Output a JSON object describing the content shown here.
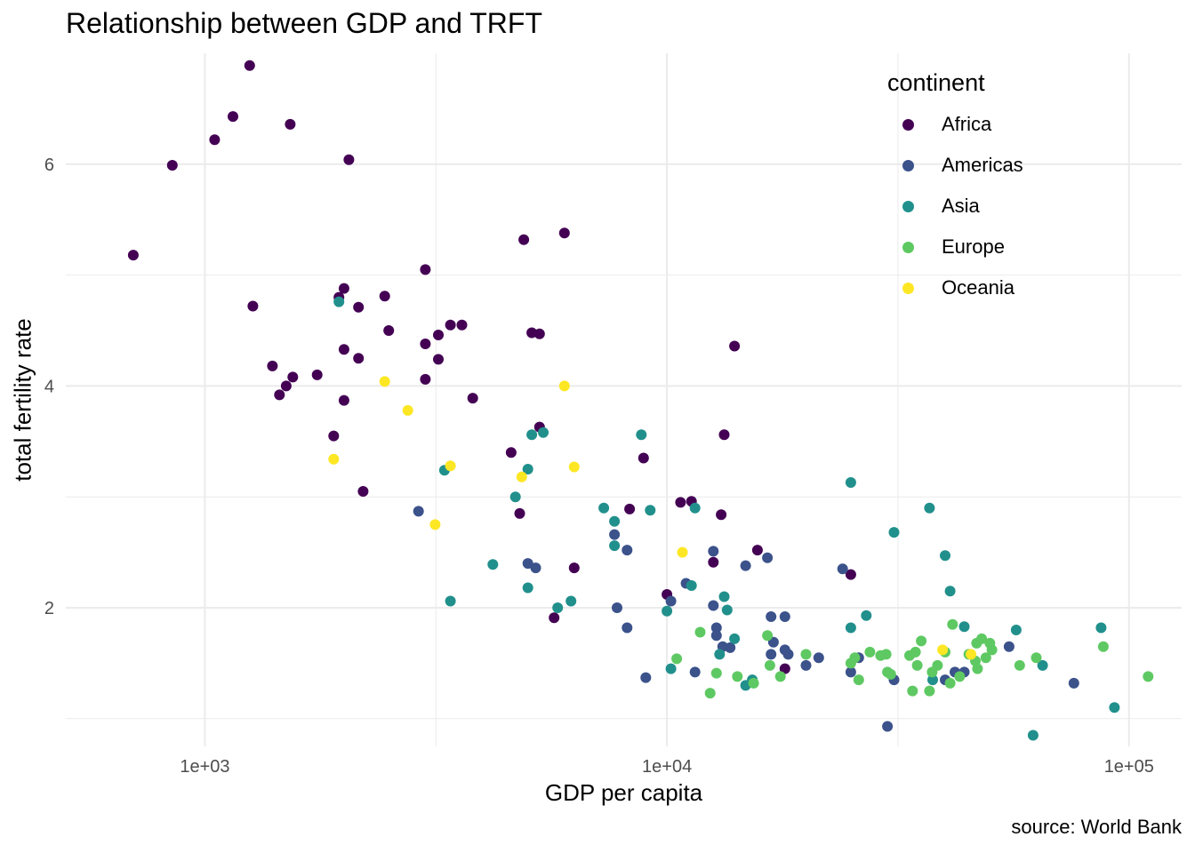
{
  "chart_data": {
    "type": "scatter",
    "title": "Relationship between GDP and TRFT",
    "caption": "source: World Bank",
    "xlabel": "GDP per capita",
    "ylabel": "total fertility rate",
    "x_scale": "log10",
    "xlim": [
      500,
      130000
    ],
    "ylim": [
      0.75,
      7.0
    ],
    "x_ticks": [
      {
        "value": 1000,
        "label": "1e+03"
      },
      {
        "value": 10000,
        "label": "1e+04"
      },
      {
        "value": 100000,
        "label": "1e+05"
      }
    ],
    "y_ticks": [
      {
        "value": 2,
        "label": "2"
      },
      {
        "value": 4,
        "label": "4"
      },
      {
        "value": 6,
        "label": "6"
      }
    ],
    "grid": true,
    "legend_title": "continent",
    "legend_position": "top-right",
    "series": [
      {
        "name": "Africa",
        "color": "#440154",
        "points": [
          [
            700,
            5.18
          ],
          [
            850,
            5.99
          ],
          [
            1050,
            6.22
          ],
          [
            1150,
            6.43
          ],
          [
            1250,
            6.89
          ],
          [
            1270,
            4.72
          ],
          [
            1400,
            4.18
          ],
          [
            1450,
            3.92
          ],
          [
            1500,
            4.0
          ],
          [
            1550,
            4.08
          ],
          [
            1530,
            6.36
          ],
          [
            1750,
            4.1
          ],
          [
            1900,
            3.55
          ],
          [
            1950,
            4.8
          ],
          [
            2000,
            4.88
          ],
          [
            2000,
            4.33
          ],
          [
            2000,
            3.87
          ],
          [
            2050,
            6.04
          ],
          [
            2150,
            4.71
          ],
          [
            2150,
            4.25
          ],
          [
            2200,
            3.05
          ],
          [
            2450,
            4.81
          ],
          [
            2500,
            4.5
          ],
          [
            3000,
            5.05
          ],
          [
            3000,
            4.38
          ],
          [
            3000,
            4.06
          ],
          [
            3200,
            4.46
          ],
          [
            3200,
            4.24
          ],
          [
            3400,
            4.55
          ],
          [
            3600,
            4.55
          ],
          [
            3800,
            3.89
          ],
          [
            4600,
            3.4
          ],
          [
            4800,
            2.85
          ],
          [
            4900,
            5.32
          ],
          [
            5100,
            4.48
          ],
          [
            5300,
            4.47
          ],
          [
            5300,
            3.63
          ],
          [
            5700,
            1.91
          ],
          [
            6000,
            5.38
          ],
          [
            6300,
            2.36
          ],
          [
            8300,
            2.89
          ],
          [
            8900,
            3.35
          ],
          [
            10000,
            2.12
          ],
          [
            10700,
            2.95
          ],
          [
            11300,
            2.96
          ],
          [
            12600,
            2.41
          ],
          [
            13100,
            2.84
          ],
          [
            13300,
            3.56
          ],
          [
            14000,
            4.36
          ],
          [
            15700,
            2.52
          ],
          [
            18000,
            1.45
          ],
          [
            25000,
            2.3
          ]
        ]
      },
      {
        "name": "Americas",
        "color": "#3b528b",
        "points": [
          [
            2900,
            2.87
          ],
          [
            5000,
            2.4
          ],
          [
            5200,
            2.36
          ],
          [
            7700,
            2.66
          ],
          [
            7800,
            2.0
          ],
          [
            8200,
            2.52
          ],
          [
            8200,
            1.82
          ],
          [
            9000,
            1.37
          ],
          [
            10200,
            2.06
          ],
          [
            11000,
            2.22
          ],
          [
            11500,
            1.42
          ],
          [
            12600,
            2.51
          ],
          [
            12600,
            2.02
          ],
          [
            12800,
            1.82
          ],
          [
            12800,
            1.75
          ],
          [
            13200,
            1.65
          ],
          [
            13700,
            1.64
          ],
          [
            14800,
            2.38
          ],
          [
            16500,
            2.45
          ],
          [
            16800,
            1.92
          ],
          [
            16800,
            1.58
          ],
          [
            17000,
            1.69
          ],
          [
            18000,
            1.92
          ],
          [
            18000,
            1.62
          ],
          [
            18300,
            1.58
          ],
          [
            20000,
            1.48
          ],
          [
            21300,
            1.55
          ],
          [
            24000,
            2.35
          ],
          [
            25000,
            1.42
          ],
          [
            26000,
            1.55
          ],
          [
            30000,
            0.93
          ],
          [
            31000,
            1.35
          ],
          [
            40000,
            1.35
          ],
          [
            42000,
            1.42
          ],
          [
            44000,
            1.42
          ],
          [
            55000,
            1.65
          ],
          [
            76000,
            1.32
          ]
        ]
      },
      {
        "name": "Asia",
        "color": "#21908c",
        "points": [
          [
            1950,
            4.76
          ],
          [
            3300,
            3.24
          ],
          [
            3400,
            2.06
          ],
          [
            4200,
            2.39
          ],
          [
            4700,
            3.0
          ],
          [
            5000,
            3.25
          ],
          [
            5000,
            2.18
          ],
          [
            5100,
            3.56
          ],
          [
            5400,
            3.58
          ],
          [
            5800,
            2.0
          ],
          [
            6200,
            2.06
          ],
          [
            7300,
            2.9
          ],
          [
            7700,
            2.78
          ],
          [
            7700,
            2.56
          ],
          [
            8800,
            3.56
          ],
          [
            9200,
            2.88
          ],
          [
            10000,
            1.97
          ],
          [
            10200,
            1.45
          ],
          [
            11300,
            2.2
          ],
          [
            11500,
            2.9
          ],
          [
            13000,
            1.58
          ],
          [
            13300,
            2.1
          ],
          [
            13500,
            1.98
          ],
          [
            14000,
            1.72
          ],
          [
            14800,
            1.3
          ],
          [
            15300,
            1.35
          ],
          [
            25000,
            3.13
          ],
          [
            25000,
            1.82
          ],
          [
            27000,
            1.93
          ],
          [
            31000,
            2.68
          ],
          [
            37000,
            2.9
          ],
          [
            37600,
            1.35
          ],
          [
            40000,
            2.47
          ],
          [
            41000,
            2.15
          ],
          [
            44000,
            1.83
          ],
          [
            57000,
            1.8
          ],
          [
            62000,
            0.85
          ],
          [
            65000,
            1.48
          ],
          [
            87000,
            1.82
          ],
          [
            93000,
            1.1
          ]
        ]
      },
      {
        "name": "Europe",
        "color": "#5ec962",
        "points": [
          [
            10500,
            1.54
          ],
          [
            11800,
            1.78
          ],
          [
            12400,
            1.23
          ],
          [
            12800,
            1.41
          ],
          [
            14200,
            1.38
          ],
          [
            15400,
            1.32
          ],
          [
            16500,
            1.75
          ],
          [
            16700,
            1.48
          ],
          [
            17600,
            1.38
          ],
          [
            20000,
            1.58
          ],
          [
            25000,
            1.5
          ],
          [
            25500,
            1.55
          ],
          [
            26000,
            1.35
          ],
          [
            27500,
            1.6
          ],
          [
            29000,
            1.57
          ],
          [
            29800,
            1.58
          ],
          [
            30000,
            1.42
          ],
          [
            30500,
            1.4
          ],
          [
            33500,
            1.57
          ],
          [
            34000,
            1.25
          ],
          [
            34500,
            1.6
          ],
          [
            34800,
            1.48
          ],
          [
            35500,
            1.7
          ],
          [
            37000,
            1.25
          ],
          [
            37500,
            1.42
          ],
          [
            38500,
            1.48
          ],
          [
            40000,
            1.6
          ],
          [
            41000,
            1.32
          ],
          [
            41500,
            1.85
          ],
          [
            43000,
            1.38
          ],
          [
            45000,
            1.58
          ],
          [
            46500,
            1.52
          ],
          [
            46800,
            1.68
          ],
          [
            47000,
            1.45
          ],
          [
            48000,
            1.72
          ],
          [
            49000,
            1.55
          ],
          [
            50000,
            1.68
          ],
          [
            50500,
            1.62
          ],
          [
            58000,
            1.48
          ],
          [
            63000,
            1.55
          ],
          [
            88000,
            1.65
          ],
          [
            110000,
            1.38
          ]
        ]
      },
      {
        "name": "Oceania",
        "color": "#fde725",
        "points": [
          [
            1900,
            3.34
          ],
          [
            2450,
            4.04
          ],
          [
            2750,
            3.78
          ],
          [
            3150,
            2.75
          ],
          [
            3400,
            3.28
          ],
          [
            4850,
            3.18
          ],
          [
            6000,
            4.0
          ],
          [
            6300,
            3.27
          ],
          [
            10800,
            2.5
          ],
          [
            39500,
            1.62
          ],
          [
            45500,
            1.58
          ]
        ]
      }
    ]
  }
}
